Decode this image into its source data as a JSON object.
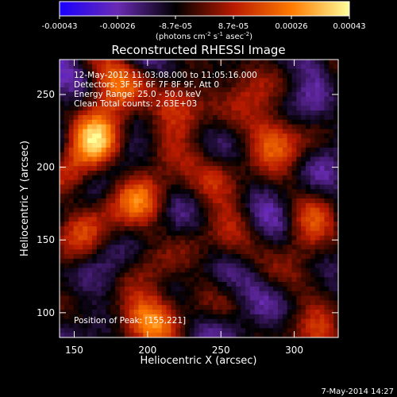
{
  "chart_data": {
    "type": "heatmap",
    "title": "Reconstructed RHESSI Image",
    "xlabel": "Heliocentric X (arcsec)",
    "ylabel": "Heliocentric Y (arcsec)",
    "xlim": [
      140,
      330
    ],
    "ylim": [
      83,
      274
    ],
    "x_ticks": [
      150,
      200,
      250,
      300
    ],
    "y_ticks": [
      100,
      150,
      200,
      250
    ],
    "colorbar": {
      "ticks": [
        "-0.00043",
        "-0.00026",
        "-8.7e-05",
        "8.7e-05",
        "0.00026",
        "0.00043"
      ],
      "label_parts": [
        "(photons cm",
        "-2",
        " s",
        "-1",
        " asec",
        "-2",
        ")"
      ],
      "range": [
        -0.00043,
        0.00043
      ],
      "colors": [
        "#1a00ff",
        "#6a2bb3",
        "#000000",
        "#b81a00",
        "#ff7a00",
        "#ffff9a"
      ]
    },
    "annotations": [
      "12-May-2012 11:03:08.000 to 11:05:16.000",
      "Detectors: 3F 5F 6F 7F 8F 9F, Att 0",
      "Energy Range: 25.0 - 50.0 keV",
      "Clean     Total counts: 2.63E+03"
    ],
    "peak_label": "Position of Peak: [155,221]",
    "peak": [
      155,
      221
    ],
    "bright_sources": [
      {
        "x": 163,
        "y": 218,
        "value": 0.00043
      },
      {
        "x": 200,
        "y": 98,
        "value": 0.0004
      },
      {
        "x": 217,
        "y": 242,
        "value": 0.0003
      },
      {
        "x": 285,
        "y": 220,
        "value": 0.00026
      },
      {
        "x": 195,
        "y": 182,
        "value": 0.00028
      },
      {
        "x": 155,
        "y": 160,
        "value": 0.00026
      },
      {
        "x": 250,
        "y": 195,
        "value": 0.00022
      },
      {
        "x": 305,
        "y": 150,
        "value": 0.00024
      },
      {
        "x": 320,
        "y": 88,
        "value": 0.0002
      },
      {
        "x": 230,
        "y": 145,
        "value": 0.00018
      },
      {
        "x": 265,
        "y": 255,
        "value": 0.00016
      },
      {
        "x": 175,
        "y": 255,
        "value": 0.00022
      }
    ],
    "grid": false,
    "legend": "none",
    "date_stamp": "7-May-2014 14:27"
  }
}
